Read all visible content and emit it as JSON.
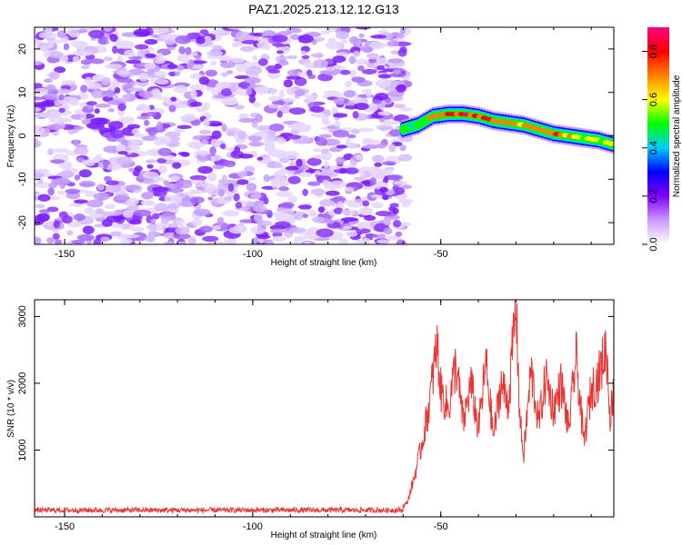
{
  "title": "PAZ1.2025.213.12.12.G13",
  "colorbar": {
    "label": "Normalized spectral amplitude",
    "range": [
      0,
      0.9
    ],
    "ticks": [
      0.0,
      0.2,
      0.4,
      0.6,
      0.8
    ],
    "tick_labels": [
      "0.0",
      "0.2",
      "0.4",
      "0.6",
      "0.8"
    ],
    "colors": [
      "#ffffff",
      "#cc99ff",
      "#8000ff",
      "#0000ff",
      "#00ccff",
      "#00ff00",
      "#ffff00",
      "#ff8000",
      "#ff0000",
      "#ff0080"
    ]
  },
  "chart_data": [
    {
      "type": "heatmap",
      "xlabel": "Height of straight line (km)",
      "ylabel": "Frequency (Hz)",
      "xlim": [
        -158,
        -4
      ],
      "ylim": [
        -25,
        25
      ],
      "xticks": [
        -150,
        -100,
        -50
      ],
      "xtick_labels": [
        "-150",
        "-100",
        "-50"
      ],
      "yticks": [
        -20,
        -10,
        0,
        10,
        20
      ],
      "ytick_labels": [
        "-20",
        "-10",
        "0",
        "10",
        "20"
      ],
      "noise_region_x": [
        -158,
        -59
      ],
      "signal_ridge": {
        "x": [
          -60,
          -56,
          -52,
          -48,
          -44,
          -40,
          -36,
          -32,
          -28,
          -24,
          -20,
          -16,
          -12,
          -8,
          -4
        ],
        "frequency": [
          1.5,
          2.5,
          4.5,
          5.0,
          5.0,
          4.5,
          3.5,
          3.0,
          2.5,
          1.5,
          0.5,
          0,
          -0.5,
          -1.0,
          -2.0
        ],
        "amplitude": [
          0.55,
          0.5,
          0.7,
          0.82,
          0.85,
          0.8,
          0.78,
          0.75,
          0.7,
          0.72,
          0.74,
          0.7,
          0.55,
          0.6,
          0.65
        ]
      }
    },
    {
      "type": "line",
      "xlabel": "Height of straight line (km)",
      "ylabel": "SNR (10 * v/v)",
      "xlim": [
        -158,
        -4
      ],
      "ylim": [
        0,
        3250
      ],
      "xticks": [
        -150,
        -100,
        -50
      ],
      "xtick_labels": [
        "-150",
        "-100",
        "-50"
      ],
      "yticks": [
        1000,
        2000,
        3000
      ],
      "ytick_labels": [
        "1000",
        "2000",
        "3000"
      ],
      "color": "#ee3333",
      "noise_level": 100,
      "anchors": {
        "x": [
          -158,
          -62,
          -59,
          -57,
          -55,
          -53,
          -51,
          -50,
          -48,
          -46,
          -44,
          -42,
          -40,
          -38,
          -36,
          -34,
          -32,
          -30,
          -29,
          -28,
          -26,
          -24,
          -22,
          -20,
          -18,
          -16,
          -14,
          -12,
          -10,
          -8,
          -6,
          -5,
          -4
        ],
        "y": [
          100,
          100,
          200,
          600,
          1100,
          1700,
          2600,
          1900,
          1600,
          2300,
          1400,
          2000,
          1300,
          2300,
          1200,
          2000,
          1700,
          3200,
          1500,
          900,
          2200,
          1400,
          2100,
          1600,
          2000,
          1300,
          2400,
          1100,
          1900,
          2100,
          2550,
          1500,
          1900
        ]
      }
    }
  ]
}
